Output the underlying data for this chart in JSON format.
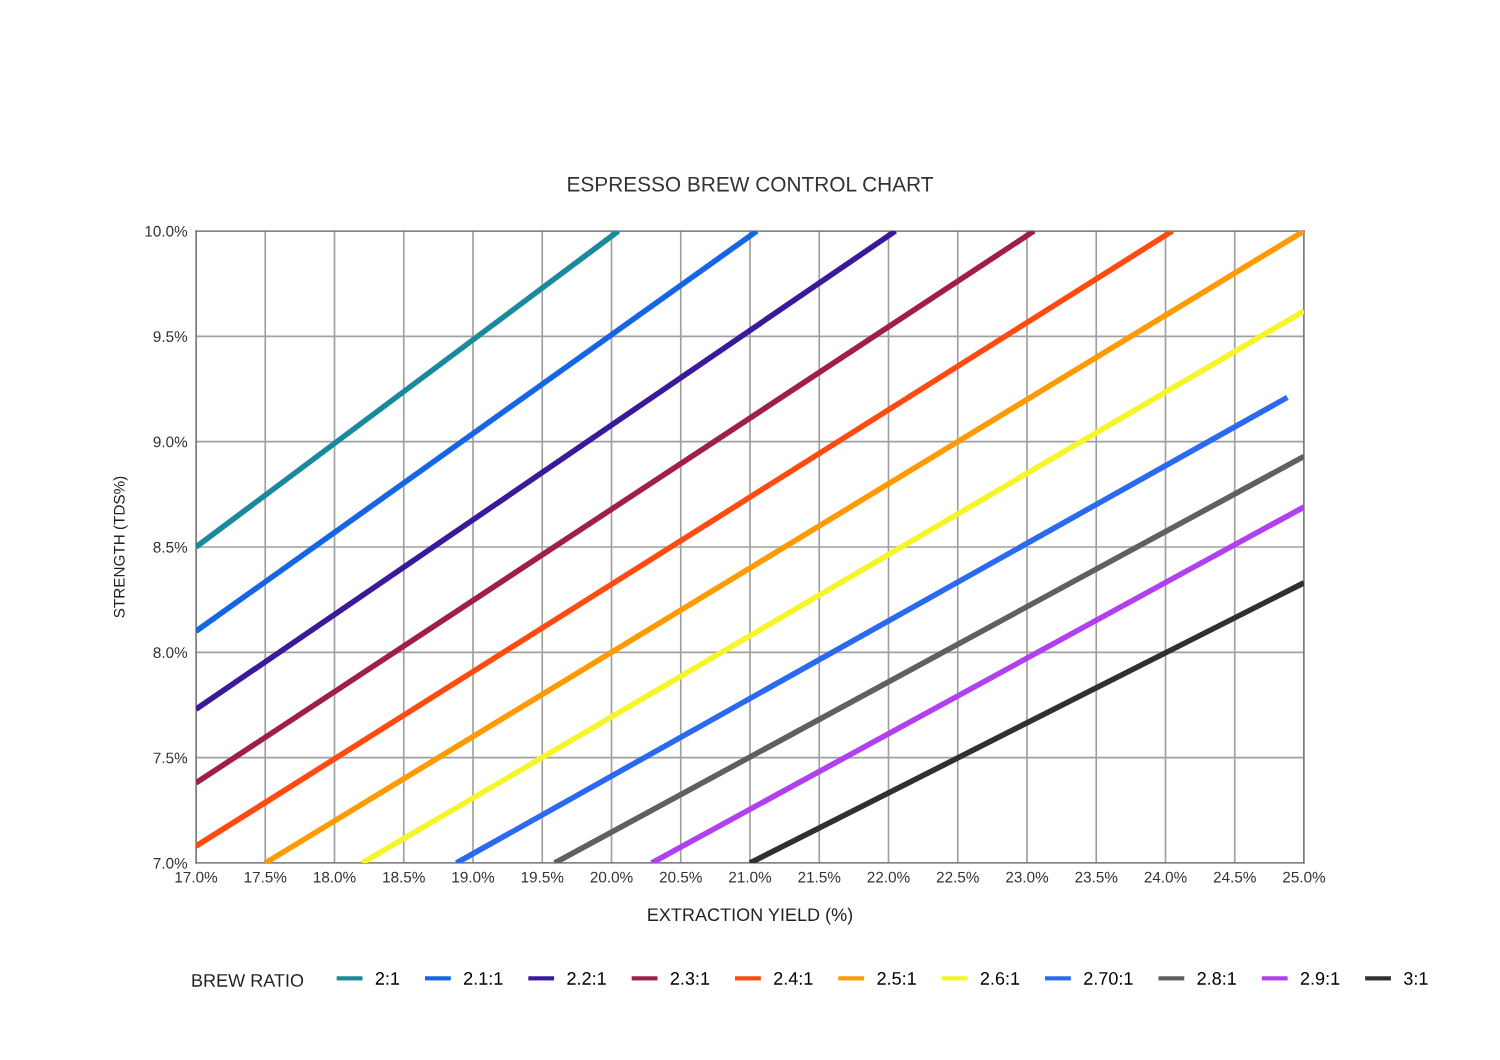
{
  "chart_data": {
    "type": "line",
    "title": "ESPRESSO BREW CONTROL CHART",
    "xlabel": "EXTRACTION YIELD (%)",
    "ylabel": "STRENGTH (TDS%)",
    "legend_title": "BREW RATIO",
    "series": [
      {
        "name": "2:1",
        "color": "#1a8a9a",
        "x": [
          17.0,
          20.05
        ],
        "values": [
          8.5,
          10.0
        ]
      },
      {
        "name": "2.1:1",
        "color": "#1566e6",
        "x": [
          17.0,
          21.05
        ],
        "values": [
          8.1,
          10.0
        ]
      },
      {
        "name": "2.2:1",
        "color": "#3a1a9a",
        "x": [
          17.0,
          22.05
        ],
        "values": [
          7.73,
          10.0
        ]
      },
      {
        "name": "2.3:1",
        "color": "#a01e4a",
        "x": [
          17.0,
          23.05
        ],
        "values": [
          7.38,
          10.0
        ]
      },
      {
        "name": "2.4:1",
        "color": "#ff4a10",
        "x": [
          17.0,
          24.05
        ],
        "values": [
          7.08,
          10.0
        ]
      },
      {
        "name": "2.5:1",
        "color": "#ff9a00",
        "x": [
          17.5,
          25.0
        ],
        "values": [
          7.0,
          10.0
        ]
      },
      {
        "name": "2.6:1",
        "color": "#f5f52a",
        "x": [
          18.2,
          25.0
        ],
        "values": [
          7.0,
          9.62
        ]
      },
      {
        "name": "2.70:1",
        "color": "#2a6af0",
        "x": [
          18.88,
          24.88
        ],
        "values": [
          7.0,
          9.21
        ]
      },
      {
        "name": "2.8:1",
        "color": "#606060",
        "x": [
          19.59,
          25.0
        ],
        "values": [
          7.0,
          8.93
        ]
      },
      {
        "name": "2.9:1",
        "color": "#b040f0",
        "x": [
          20.29,
          25.0
        ],
        "values": [
          7.0,
          8.69
        ]
      },
      {
        "name": "3:1",
        "color": "#303030",
        "x": [
          21.0,
          25.0
        ],
        "values": [
          7.0,
          8.33
        ]
      }
    ],
    "xlim": [
      17.0,
      25.0
    ],
    "ylim": [
      7.0,
      10.0
    ],
    "xticks": [
      {
        "value": 17.0,
        "label": "17.0%"
      },
      {
        "value": 17.5,
        "label": "17.5%"
      },
      {
        "value": 18.0,
        "label": "18.0%"
      },
      {
        "value": 18.5,
        "label": "18.5%"
      },
      {
        "value": 19.0,
        "label": "19.0%"
      },
      {
        "value": 19.5,
        "label": "19.5%"
      },
      {
        "value": 20.0,
        "label": "20.0%"
      },
      {
        "value": 20.5,
        "label": "20.5%"
      },
      {
        "value": 21.0,
        "label": "21.0%"
      },
      {
        "value": 21.5,
        "label": "21.5%"
      },
      {
        "value": 22.0,
        "label": "22.0%"
      },
      {
        "value": 22.5,
        "label": "22.5%"
      },
      {
        "value": 23.0,
        "label": "23.0%"
      },
      {
        "value": 23.5,
        "label": "23.5%"
      },
      {
        "value": 24.0,
        "label": "24.0%"
      },
      {
        "value": 24.5,
        "label": "24.5%"
      },
      {
        "value": 25.0,
        "label": "25.0%"
      }
    ],
    "yticks": [
      {
        "value": 7.0,
        "label": "7.0%"
      },
      {
        "value": 7.5,
        "label": "7.5%"
      },
      {
        "value": 8.0,
        "label": "8.0%"
      },
      {
        "value": 8.5,
        "label": "8.5%"
      },
      {
        "value": 9.0,
        "label": "9.0%"
      },
      {
        "value": 9.5,
        "label": "9.5%"
      },
      {
        "value": 10.0,
        "label": "10.0%"
      }
    ],
    "grid": true,
    "legend": "bottom",
    "marker": "none",
    "line_style": "solid"
  }
}
